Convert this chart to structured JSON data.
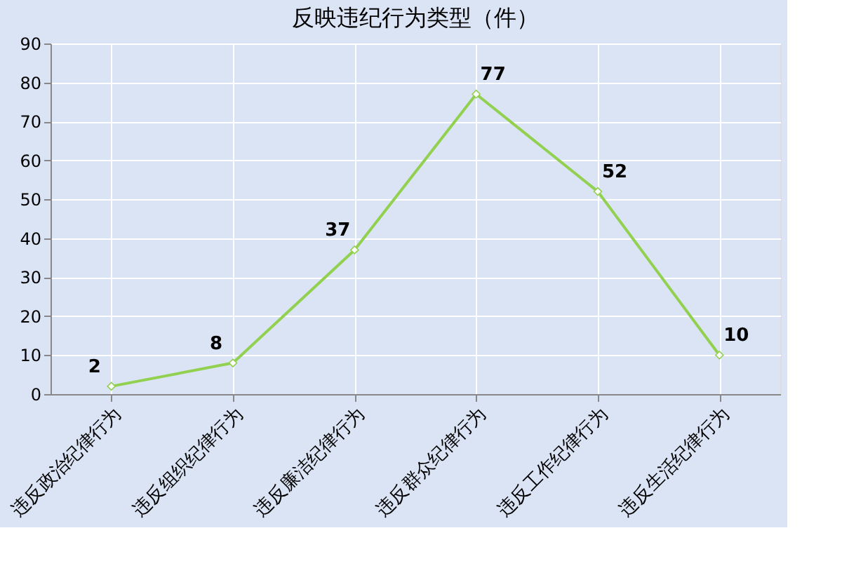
{
  "chart_data": {
    "type": "line",
    "title": "反映违纪行为类型（件）",
    "categories": [
      "违反政治纪律行为",
      "违反组织纪律行为",
      "违反廉洁纪律行为",
      "违反群众纪律行为",
      "违反工作纪律行为",
      "违反生活纪律行为"
    ],
    "series": [
      {
        "color": "#92d050",
        "values": [
          2,
          8,
          37,
          77,
          52,
          10
        ]
      }
    ],
    "ylim": [
      0,
      90
    ],
    "yticks": [
      0,
      10,
      20,
      30,
      40,
      50,
      60,
      70,
      80,
      90
    ],
    "grid": true,
    "data_labels": true,
    "marker": "diamond",
    "line_style": "solid"
  }
}
